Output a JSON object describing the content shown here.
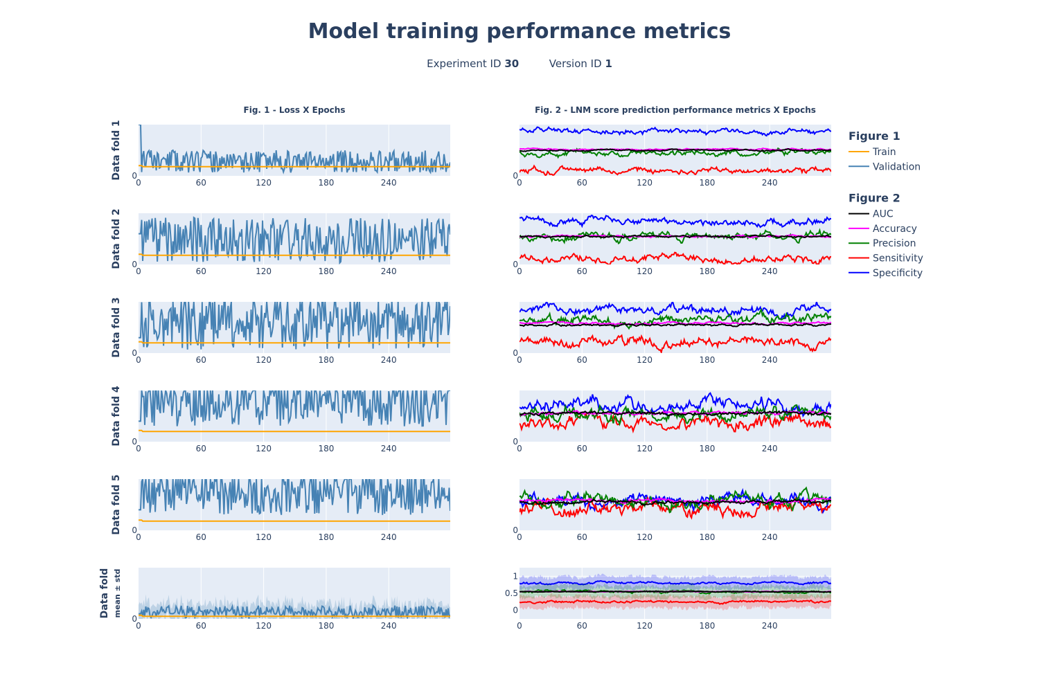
{
  "title": "Model training performance metrics",
  "subtitle": {
    "experiment_label": "Experiment ID",
    "experiment_value": "30",
    "version_label": "Version ID",
    "version_value": "1"
  },
  "colors": {
    "plot_bg": "#e5ecf6",
    "grid": "#ffffff",
    "text": "#2a3f5f",
    "Train": "#ffa500",
    "Validation": "#4682b4",
    "AUC": "#000000",
    "Accuracy": "#ff00ff",
    "Precision": "#008000",
    "Sensitivity": "#ff0000",
    "Specificity": "#0000ff"
  },
  "legend": {
    "placement": "right",
    "groups": [
      {
        "title": "Figure 1",
        "items": [
          "Train",
          "Validation"
        ]
      },
      {
        "title": "Figure 2",
        "items": [
          "AUC",
          "Accuracy",
          "Precision",
          "Sensitivity",
          "Specificity"
        ]
      }
    ]
  },
  "chart_data": {
    "type": "line",
    "column_titles": [
      "Fig. 1 - Loss X Epochs",
      "Fig. 2 - LNM score prediction performance metrics X Epochs"
    ],
    "row_labels": [
      {
        "main": "Data fold 1",
        "sub": ""
      },
      {
        "main": "Data fold 2",
        "sub": ""
      },
      {
        "main": "Data fold 3",
        "sub": ""
      },
      {
        "main": "Data fold 4",
        "sub": ""
      },
      {
        "main": "Data fold 5",
        "sub": ""
      },
      {
        "main": "Data fold",
        "sub": "mean ± std"
      }
    ],
    "x_ticks": [
      0,
      60,
      120,
      180,
      240
    ],
    "xlim": [
      0,
      299
    ],
    "epochs": 300,
    "grid": true,
    "loss_panels": [
      {
        "fold": 1,
        "ylim": [
          0,
          1
        ],
        "train": 0.18,
        "val_base": 0.28,
        "val_amp": 0.22,
        "spike_start": 1.0,
        "seed": 11
      },
      {
        "fold": 2,
        "ylim": [
          0,
          1
        ],
        "train": 0.18,
        "val_base": 0.48,
        "val_amp": 0.45,
        "spike_start": 0.6,
        "seed": 12
      },
      {
        "fold": 3,
        "ylim": [
          0,
          1
        ],
        "train": 0.2,
        "val_base": 0.62,
        "val_amp": 0.55,
        "spike_start": 0.3,
        "seed": 13
      },
      {
        "fold": 4,
        "ylim": [
          0,
          1
        ],
        "train": 0.2,
        "val_base": 0.8,
        "val_amp": 0.5,
        "spike_start": 0.4,
        "seed": 14
      },
      {
        "fold": 5,
        "ylim": [
          0,
          1
        ],
        "train": 0.18,
        "val_base": 0.8,
        "val_amp": 0.5,
        "spike_start": 0.4,
        "seed": 15
      },
      {
        "fold": "mean",
        "ylim": [
          0,
          1
        ],
        "train": 0.05,
        "val_base": 0.14,
        "val_amp": 0.12,
        "band": 0.16,
        "spike_start": 0.1,
        "seed": 16
      }
    ],
    "metric_panels": [
      {
        "fold": 1,
        "ylim": [
          0,
          1
        ],
        "seed": 21,
        "noise": 0.06,
        "levels": {
          "AUC": 0.5,
          "Accuracy": 0.52,
          "Precision": 0.45,
          "Sensitivity": 0.1,
          "Specificity": 0.88
        }
      },
      {
        "fold": 2,
        "ylim": [
          0,
          1
        ],
        "seed": 22,
        "noise": 0.08,
        "levels": {
          "AUC": 0.55,
          "Accuracy": 0.55,
          "Precision": 0.55,
          "Sensitivity": 0.1,
          "Specificity": 0.85
        }
      },
      {
        "fold": 3,
        "ylim": [
          0,
          1
        ],
        "seed": 23,
        "noise": 0.1,
        "levels": {
          "AUC": 0.55,
          "Accuracy": 0.58,
          "Precision": 0.65,
          "Sensitivity": 0.2,
          "Specificity": 0.85
        }
      },
      {
        "fold": 4,
        "ylim": [
          0,
          1
        ],
        "seed": 24,
        "noise": 0.14,
        "levels": {
          "AUC": 0.55,
          "Accuracy": 0.55,
          "Precision": 0.55,
          "Sensitivity": 0.35,
          "Specificity": 0.7
        }
      },
      {
        "fold": 5,
        "ylim": [
          0,
          1
        ],
        "seed": 25,
        "noise": 0.14,
        "levels": {
          "AUC": 0.55,
          "Accuracy": 0.58,
          "Precision": 0.6,
          "Sensitivity": 0.45,
          "Specificity": 0.6
        }
      },
      {
        "fold": "mean",
        "ylim": [
          -0.25,
          1.25
        ],
        "y_ticks": [
          0,
          0.5,
          1
        ],
        "seed": 26,
        "noise": 0.04,
        "band": 0.18,
        "levels": {
          "AUC": 0.55,
          "Accuracy": 0.55,
          "Precision": 0.55,
          "Sensitivity": 0.25,
          "Specificity": 0.8
        }
      }
    ]
  }
}
